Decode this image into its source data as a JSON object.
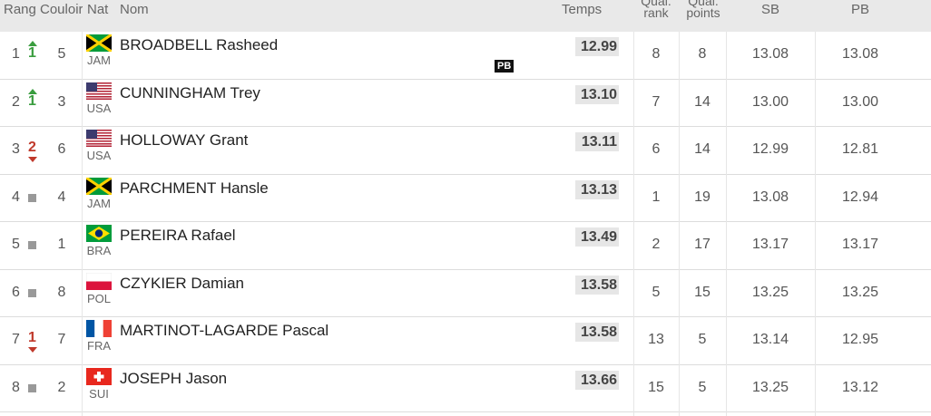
{
  "table": {
    "header": [
      "Rang",
      "Couloir",
      "Nat",
      "Nom",
      "Temps",
      "Qual. rank",
      "Qual. points",
      "SB",
      "PB"
    ],
    "rows": [
      {
        "rank": 1,
        "change": 1,
        "lane": 5,
        "nat": "JAM",
        "name": "BROADBELL Rasheed",
        "time": "12.99",
        "badge": "PB",
        "qual_rank": 8,
        "qual_points": 8,
        "sb": "13.08",
        "pb": "13.08"
      },
      {
        "rank": 2,
        "change": 1,
        "lane": 3,
        "nat": "USA",
        "name": "CUNNINGHAM Trey",
        "time": "13.10",
        "qual_rank": 7,
        "qual_points": 14,
        "sb": "13.00",
        "pb": "13.00"
      },
      {
        "rank": 3,
        "change": 2,
        "lane": 6,
        "nat": "USA",
        "name": "HOLLOWAY Grant",
        "time": "13.11",
        "qual_rank": 6,
        "qual_points": 14,
        "sb": "12.99",
        "pb": "12.81"
      },
      {
        "rank": 4,
        "lane": 4,
        "nat": "JAM",
        "name": "PARCHMENT Hansle",
        "time": "13.13",
        "qual_rank": 1,
        "qual_points": 19,
        "sb": "13.08",
        "pb": "12.94"
      },
      {
        "rank": 5,
        "lane": 1,
        "nat": "BRA",
        "name": "PEREIRA Rafael",
        "time": "13.49",
        "qual_rank": 2,
        "qual_points": 17,
        "sb": "13.17",
        "pb": "13.17"
      },
      {
        "rank": 6,
        "lane": 8,
        "nat": "POL",
        "name": "CZYKIER Damian",
        "time": "13.58",
        "qual_rank": 5,
        "qual_points": 15,
        "sb": "13.25",
        "pb": "13.25"
      },
      {
        "rank": 7,
        "change": 1,
        "lane": 7,
        "nat": "FRA",
        "name": "MARTINOT-LAGARDE Pascal",
        "time": "13.58",
        "qual_rank": 13,
        "qual_points": 5,
        "sb": "13.14",
        "pb": "12.95"
      },
      {
        "rank": 8,
        "lane": 2,
        "nat": "SUI",
        "name": "JOSEPH Jason",
        "time": "13.66",
        "qual_rank": 15,
        "qual_points": 5,
        "sb": "13.25",
        "pb": "13.12"
      }
    ]
  }
}
